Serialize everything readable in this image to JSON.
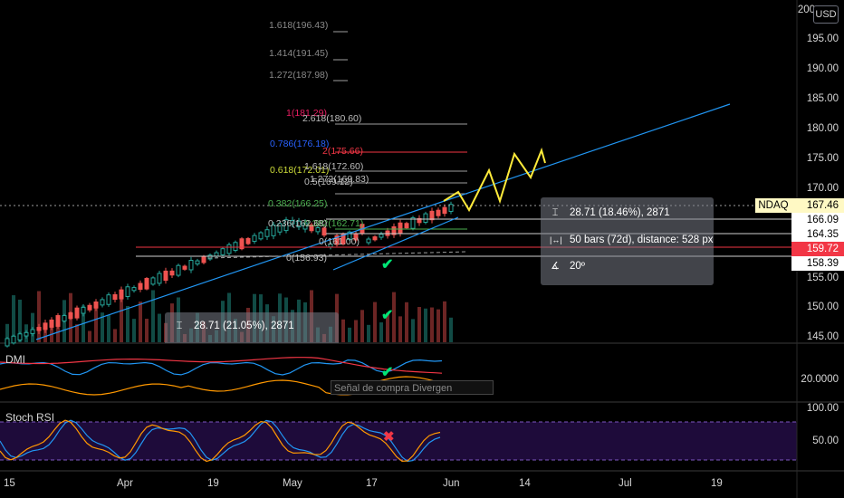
{
  "currency": "USD",
  "symbol_tag": "NDAQ",
  "price_axis": {
    "labels": [
      "200",
      "195.00",
      "190.00",
      "185.00",
      "180.00",
      "175.00",
      "170.00",
      "165.00",
      "160.00",
      "155.00",
      "150.00",
      "145.00"
    ]
  },
  "price_tags": {
    "last": "167.46",
    "level_a": "166.09",
    "level_b": "164.35",
    "level_red": "159.72",
    "level_c": "158.39"
  },
  "fib_upper": [
    "1.618(196.43)",
    "1.414(191.45)",
    "1.272(187.98)"
  ],
  "fib_cluster": [
    {
      "text": "1(181.29)",
      "color": "#e91e63"
    },
    {
      "text": "2.618(180.60)",
      "color": "#bdbdbd"
    },
    {
      "text": "0.786(176.18)",
      "color": "#2962ff"
    },
    {
      "text": "2(175.66)",
      "color": "#f23645"
    },
    {
      "text": "0.618(172.01)",
      "color": "#cddc39"
    },
    {
      "text": "1.618(172.60)",
      "color": "#bdbdbd"
    },
    {
      "text": "0.5(169.12)",
      "color": "#bdbdbd"
    },
    {
      "text": "1.272(169.83)",
      "color": "#bdbdbd"
    },
    {
      "text": "0.382(166.25)",
      "color": "#4caf50"
    },
    {
      "text": "0.382(162.71)",
      "color": "#4caf50"
    },
    {
      "text": "0.236(162.68)",
      "color": "#bdbdbd"
    },
    {
      "text": "0(161.00)",
      "color": "#bdbdbd"
    },
    {
      "text": "0(156.93)",
      "color": "#bdbdbd"
    }
  ],
  "measure_main": {
    "line1": "28.71 (18.46%), 2871",
    "line2": "50 bars (72d), distance: 528 px",
    "line3": "20º"
  },
  "measure_small": {
    "line1": "28.71 (21.05%), 2871"
  },
  "dmi": {
    "title": "DMI",
    "axis_value": "20.0000",
    "annotation": "Señal de compra Divergen"
  },
  "stoch": {
    "title": "Stoch RSI",
    "axis_top": "100.00",
    "axis_mid": "50.00"
  },
  "date_axis": [
    "15",
    "Apr",
    "19",
    "May",
    "17",
    "Jun",
    "14",
    "Jul",
    "19"
  ],
  "colors": {
    "up": "#26a69a",
    "down": "#ef5350",
    "trendline": "#2196f3",
    "projection": "#ffeb3b",
    "check": "#00e676",
    "cross": "#f23645",
    "stoch_bg": "#1e0b3a"
  },
  "icons": [
    "ruler-vertical-icon",
    "ruler-horizontal-icon",
    "angle-icon",
    "check-icon",
    "cross-icon"
  ]
}
